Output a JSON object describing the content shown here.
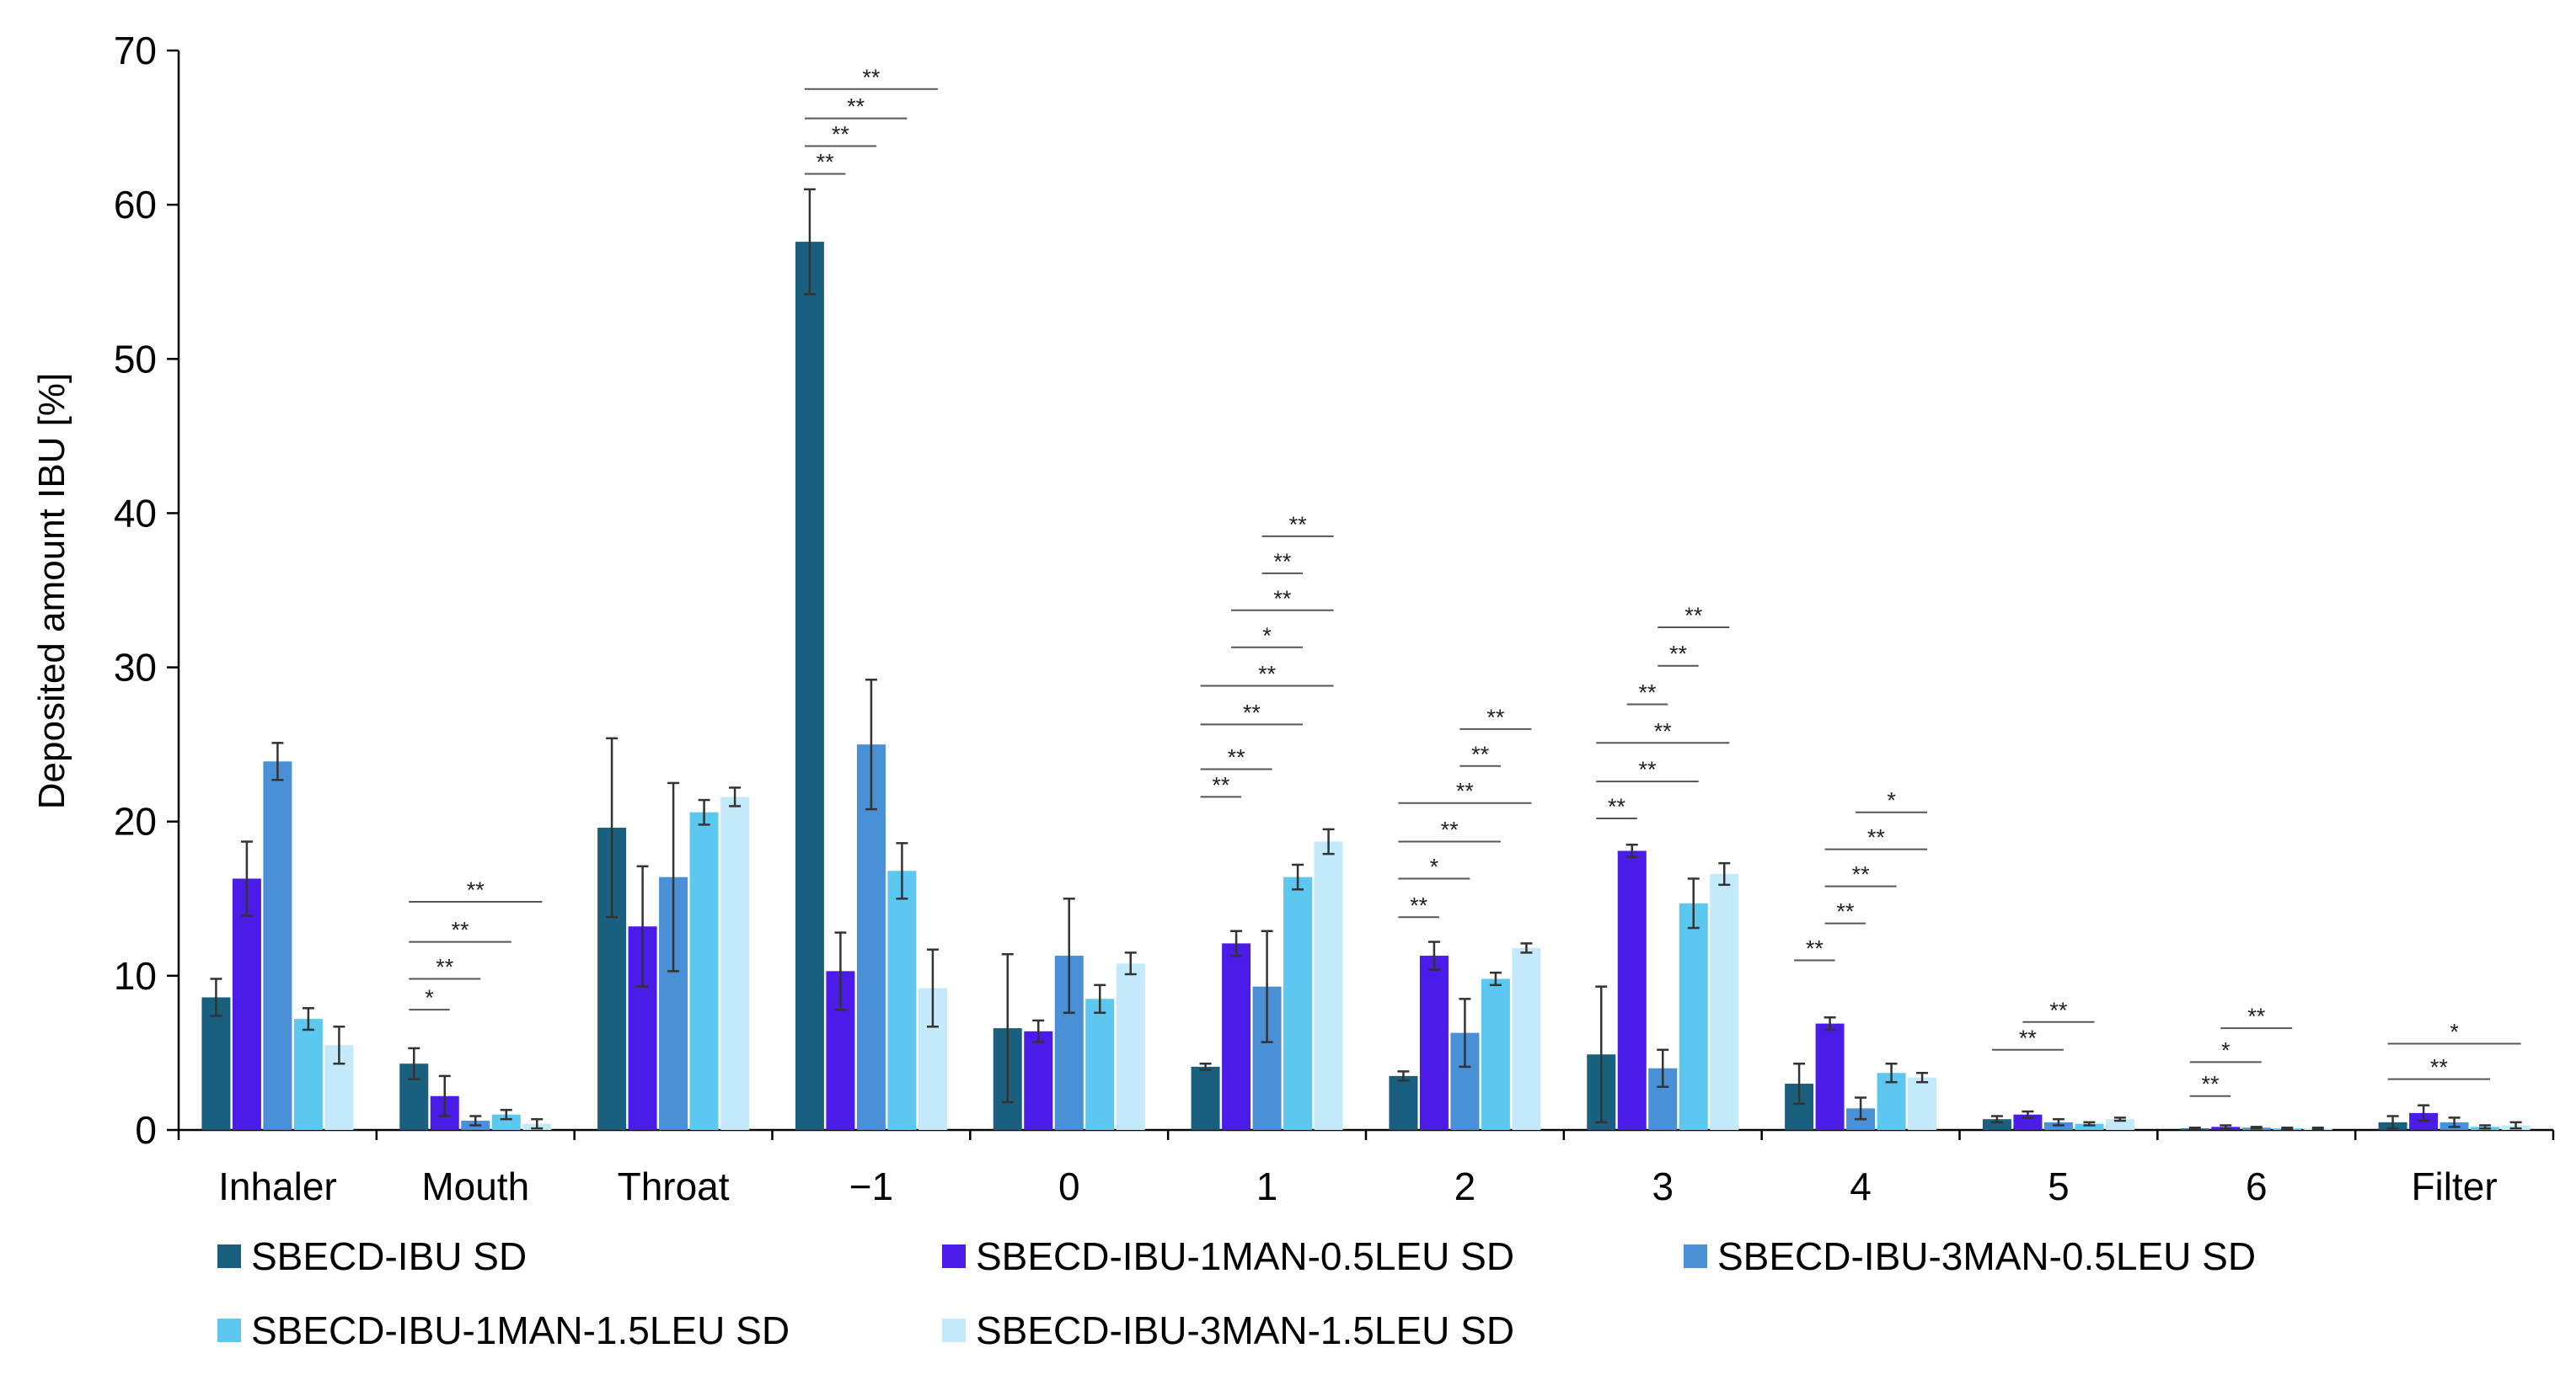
{
  "chart_data": {
    "type": "bar",
    "title": "",
    "xlabel": "",
    "ylabel": "Deposited amount IBU [%]",
    "ylim": [
      0,
      70
    ],
    "yticks": [
      0,
      10,
      20,
      30,
      40,
      50,
      60,
      70
    ],
    "grid": false,
    "legend_position": "bottom",
    "categories": [
      "Inhaler",
      "Mouth",
      "Throat",
      "−1",
      "0",
      "1",
      "2",
      "3",
      "4",
      "5",
      "6",
      "Filter"
    ],
    "series": [
      {
        "name": "SBECD-IBU SD",
        "color": "#1b5f7f",
        "values": [
          8.6,
          4.3,
          19.6,
          57.6,
          6.6,
          4.1,
          3.5,
          4.9,
          3.0,
          0.7,
          0.1,
          0.5
        ],
        "errors": [
          1.2,
          1.0,
          5.8,
          3.4,
          4.8,
          0.2,
          0.3,
          4.4,
          1.3,
          0.2,
          0.05,
          0.4
        ]
      },
      {
        "name": "SBECD-IBU-1MAN-0.5LEU SD",
        "color": "#4b1be8",
        "values": [
          16.3,
          2.2,
          13.2,
          10.3,
          6.4,
          12.1,
          11.3,
          18.1,
          6.9,
          1.0,
          0.2,
          1.1
        ],
        "errors": [
          2.4,
          1.3,
          3.9,
          2.5,
          0.7,
          0.8,
          0.9,
          0.4,
          0.4,
          0.2,
          0.1,
          0.5
        ]
      },
      {
        "name": "SBECD-IBU-3MAN-0.5LEU SD",
        "color": "#4a90d6",
        "values": [
          23.9,
          0.6,
          16.4,
          25.0,
          11.3,
          9.3,
          6.3,
          4.0,
          1.4,
          0.5,
          0.15,
          0.5
        ],
        "errors": [
          1.2,
          0.3,
          6.1,
          4.2,
          3.7,
          3.6,
          2.2,
          1.2,
          0.7,
          0.2,
          0.05,
          0.3
        ]
      },
      {
        "name": "SBECD-IBU-1MAN-1.5LEU SD",
        "color": "#5cc8f0",
        "values": [
          7.2,
          1.0,
          20.6,
          16.8,
          8.5,
          16.4,
          9.8,
          14.7,
          3.7,
          0.4,
          0.1,
          0.2
        ],
        "errors": [
          0.7,
          0.3,
          0.8,
          1.8,
          0.9,
          0.8,
          0.4,
          1.6,
          0.6,
          0.1,
          0.05,
          0.1
        ]
      },
      {
        "name": "SBECD-IBU-3MAN-1.5LEU SD",
        "color": "#c4e9fa",
        "values": [
          5.5,
          0.4,
          21.6,
          9.2,
          10.8,
          18.7,
          11.8,
          16.6,
          3.4,
          0.7,
          0.1,
          0.3
        ],
        "errors": [
          1.2,
          0.3,
          0.6,
          2.5,
          0.7,
          0.8,
          0.3,
          0.7,
          0.3,
          0.1,
          0.05,
          0.2
        ]
      }
    ],
    "significance": [
      {
        "category": 1,
        "from": 0,
        "to": 1,
        "level": 7.8,
        "label": "*"
      },
      {
        "category": 1,
        "from": 0,
        "to": 2,
        "level": 9.8,
        "label": "**"
      },
      {
        "category": 1,
        "from": 0,
        "to": 3,
        "level": 12.2,
        "label": "**"
      },
      {
        "category": 1,
        "from": 0,
        "to": 4,
        "level": 14.8,
        "label": "**"
      },
      {
        "category": 3,
        "from": 0,
        "to": 1,
        "level": 62.0,
        "label": "**"
      },
      {
        "category": 3,
        "from": 0,
        "to": 2,
        "level": 63.8,
        "label": "**"
      },
      {
        "category": 3,
        "from": 0,
        "to": 3,
        "level": 65.6,
        "label": "**"
      },
      {
        "category": 3,
        "from": 0,
        "to": 4,
        "level": 67.5,
        "label": "**"
      },
      {
        "category": 5,
        "from": 0,
        "to": 1,
        "level": 21.6,
        "label": "**"
      },
      {
        "category": 5,
        "from": 0,
        "to": 2,
        "level": 23.4,
        "label": "**"
      },
      {
        "category": 5,
        "from": 0,
        "to": 3,
        "level": 26.3,
        "label": "**"
      },
      {
        "category": 5,
        "from": 0,
        "to": 4,
        "level": 28.8,
        "label": "**"
      },
      {
        "category": 5,
        "from": 1,
        "to": 3,
        "level": 31.3,
        "label": "*"
      },
      {
        "category": 5,
        "from": 1,
        "to": 4,
        "level": 33.7,
        "label": "**"
      },
      {
        "category": 5,
        "from": 2,
        "to": 3,
        "level": 36.1,
        "label": "**"
      },
      {
        "category": 5,
        "from": 2,
        "to": 4,
        "level": 38.5,
        "label": "**"
      },
      {
        "category": 6,
        "from": 0,
        "to": 1,
        "level": 13.8,
        "label": "**"
      },
      {
        "category": 6,
        "from": 0,
        "to": 2,
        "level": 16.3,
        "label": "*"
      },
      {
        "category": 6,
        "from": 0,
        "to": 3,
        "level": 18.7,
        "label": "**"
      },
      {
        "category": 6,
        "from": 0,
        "to": 4,
        "level": 21.2,
        "label": "**"
      },
      {
        "category": 6,
        "from": 2,
        "to": 3,
        "level": 23.6,
        "label": "**"
      },
      {
        "category": 6,
        "from": 2,
        "to": 4,
        "level": 26.0,
        "label": "**"
      },
      {
        "category": 7,
        "from": 0,
        "to": 1,
        "level": 20.2,
        "label": "**"
      },
      {
        "category": 7,
        "from": 0,
        "to": 3,
        "level": 22.6,
        "label": "**"
      },
      {
        "category": 7,
        "from": 0,
        "to": 4,
        "level": 25.1,
        "label": "**"
      },
      {
        "category": 7,
        "from": 1,
        "to": 2,
        "level": 27.6,
        "label": "**"
      },
      {
        "category": 7,
        "from": 2,
        "to": 3,
        "level": 30.1,
        "label": "**"
      },
      {
        "category": 7,
        "from": 2,
        "to": 4,
        "level": 32.6,
        "label": "**"
      },
      {
        "category": 8,
        "from": 0,
        "to": 1,
        "level": 11.0,
        "label": "**"
      },
      {
        "category": 8,
        "from": 1,
        "to": 2,
        "level": 13.4,
        "label": "**"
      },
      {
        "category": 8,
        "from": 1,
        "to": 3,
        "level": 15.8,
        "label": "**"
      },
      {
        "category": 8,
        "from": 1,
        "to": 4,
        "level": 18.2,
        "label": "**"
      },
      {
        "category": 8,
        "from": 2,
        "to": 4,
        "level": 20.6,
        "label": "*"
      },
      {
        "category": 9,
        "from": 0,
        "to": 2,
        "level": 5.2,
        "label": "**"
      },
      {
        "category": 9,
        "from": 1,
        "to": 3,
        "level": 7.0,
        "label": "**"
      },
      {
        "category": 10,
        "from": 0,
        "to": 1,
        "level": 2.2,
        "label": "**"
      },
      {
        "category": 10,
        "from": 0,
        "to": 2,
        "level": 4.4,
        "label": "*"
      },
      {
        "category": 10,
        "from": 1,
        "to": 3,
        "level": 6.6,
        "label": "**"
      },
      {
        "category": 11,
        "from": 0,
        "to": 3,
        "level": 3.3,
        "label": "**"
      },
      {
        "category": 11,
        "from": 0,
        "to": 4,
        "level": 5.6,
        "label": "*"
      }
    ]
  }
}
